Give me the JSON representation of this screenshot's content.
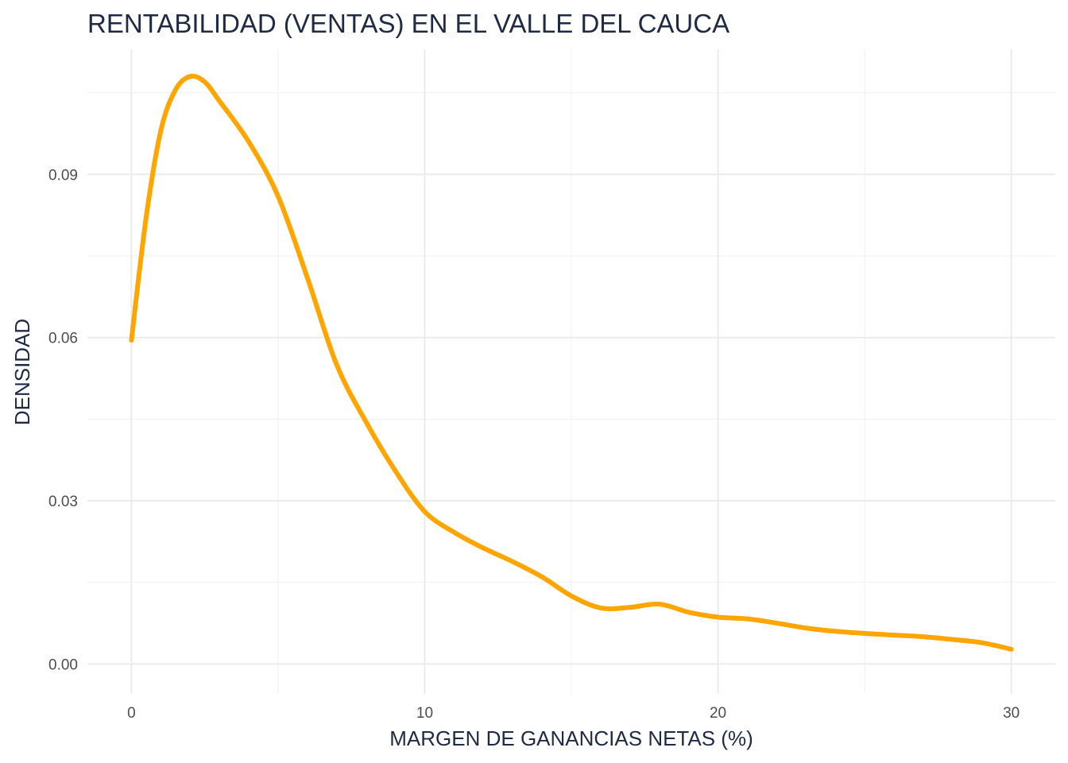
{
  "chart_data": {
    "type": "line",
    "title": "RENTABILIDAD (VENTAS) EN EL VALLE DEL CAUCA",
    "xlabel": "MARGEN DE GANANCIAS NETAS (%)",
    "ylabel": "DENSIDAD",
    "xlim": [
      -1.5,
      31.5
    ],
    "ylim": [
      -0.0055,
      0.113
    ],
    "x_ticks": [
      0,
      10,
      20,
      30
    ],
    "x_tick_labels": [
      "0",
      "10",
      "20",
      "30"
    ],
    "y_ticks": [
      0.0,
      0.03,
      0.06,
      0.09
    ],
    "y_tick_labels": [
      "0.00",
      "0.03",
      "0.06",
      "0.09"
    ],
    "grid": true,
    "legend": "none",
    "line_color": "#FFA500",
    "series": [
      {
        "x": [
          0,
          0.5,
          1.0,
          1.5,
          2.0,
          2.5,
          3.0,
          4.0,
          5.0,
          6.0,
          7.0,
          8.0,
          9.0,
          10.0,
          11.0,
          12.0,
          13.0,
          14.0,
          15.0,
          16.0,
          17.0,
          18.0,
          19.0,
          20.0,
          21.0,
          22.0,
          23.0,
          24.0,
          25.0,
          26.0,
          27.0,
          28.0,
          29.0,
          30.0
        ],
        "y": [
          0.0595,
          0.082,
          0.098,
          0.1055,
          0.108,
          0.107,
          0.1035,
          0.096,
          0.086,
          0.071,
          0.055,
          0.0445,
          0.0355,
          0.028,
          0.0242,
          0.0213,
          0.0188,
          0.016,
          0.0125,
          0.0103,
          0.0104,
          0.011,
          0.0095,
          0.0086,
          0.0083,
          0.0075,
          0.0066,
          0.006,
          0.0056,
          0.0053,
          0.005,
          0.0045,
          0.0039,
          0.0027
        ]
      }
    ]
  }
}
